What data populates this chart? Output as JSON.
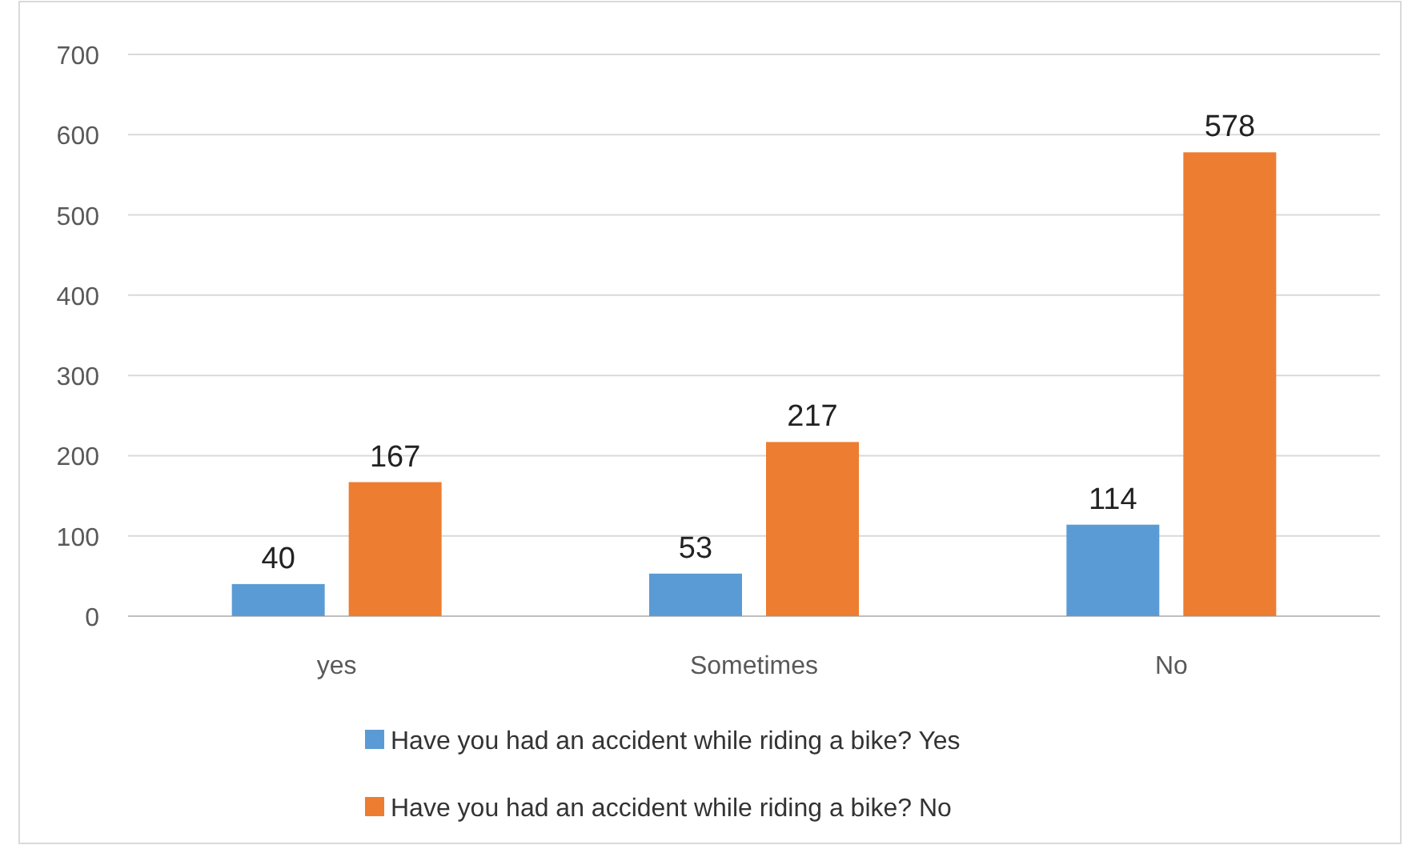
{
  "chart_data": {
    "type": "bar",
    "categories": [
      "yes",
      "Sometimes",
      "No"
    ],
    "series": [
      {
        "name": "Have you had an accident while riding a bike? Yes",
        "color": "#5b9bd5",
        "values": [
          40,
          53,
          114
        ]
      },
      {
        "name": "Have you had an accident while riding a bike? No",
        "color": "#ed7d31",
        "values": [
          167,
          217,
          578
        ]
      }
    ],
    "ylim": [
      0,
      700
    ],
    "yticks": [
      0,
      100,
      200,
      300,
      400,
      500,
      600,
      700
    ],
    "grid": "y",
    "legend": "bottom",
    "data_labels": true
  }
}
